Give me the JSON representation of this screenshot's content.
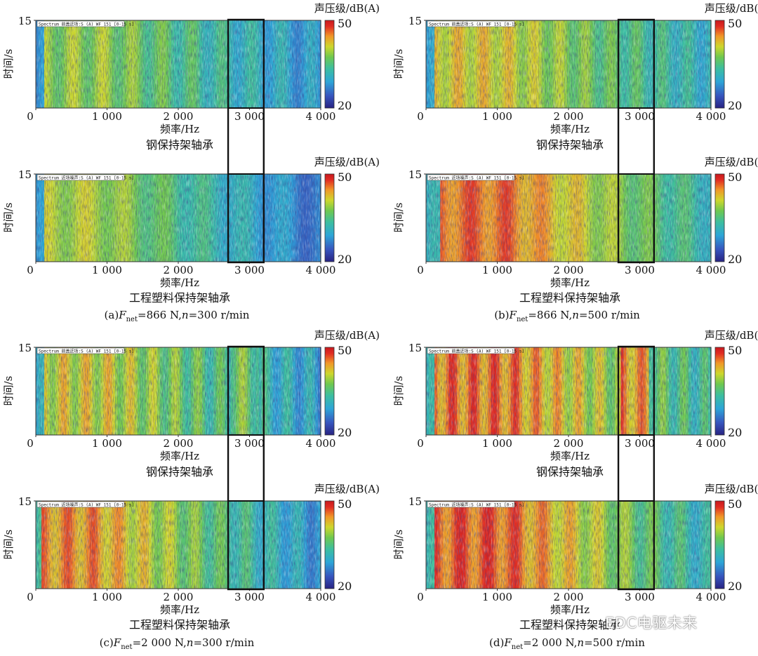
{
  "figure": {
    "watermark": "EDC电驱未来"
  },
  "chart_data": {
    "type": "heatmap",
    "xlabel": "频率/Hz",
    "ylabel": "时间/s",
    "colorbar_title": "声压级/dB(A)",
    "x_ticks": [
      "0",
      "1 000",
      "2 000",
      "3 000",
      "4 000"
    ],
    "x_range": [
      0,
      4000
    ],
    "y_ticks": [
      "15"
    ],
    "y_range": [
      0,
      15
    ],
    "color_range": [
      20,
      50
    ],
    "color_ticks": [
      "50",
      "20"
    ],
    "highlight_band_hz": [
      2700,
      3200
    ],
    "panels": [
      {
        "caption": {
          "pre": "(a)",
          "f": "F",
          "sub": "net",
          "mid": "=866 N,",
          "n": "n",
          "post": "=300 r/min"
        },
        "plots": [
          {
            "bearing": "钢保持架轴承",
            "header": "Spectrum 前盖近场:S (A) WF 151 [0-15 s]"
          },
          {
            "bearing": "工程塑料保持架轴承",
            "header": "Spectrum 近场噪声:S (A) WF 151 [0-15 s]"
          }
        ]
      },
      {
        "caption": {
          "pre": "(b)",
          "f": "F",
          "sub": "net",
          "mid": "=866 N,",
          "n": "n",
          "post": "=500 r/min"
        },
        "plots": [
          {
            "bearing": "钢保持架轴承",
            "header": "Spectrum 前盖近场:S (A) WF 151 [0-15 s]"
          },
          {
            "bearing": "工程塑料保持架轴承",
            "header": "Spectrum 近场噪声:S (A) WF 151 [0-15 s]"
          }
        ]
      },
      {
        "caption": {
          "pre": "(c)",
          "f": "F",
          "sub": "net",
          "mid": "=2 000 N,",
          "n": "n",
          "post": "=300 r/min"
        },
        "plots": [
          {
            "bearing": "钢保持架轴承",
            "header": "Spectrum 前盖近场:S (A) WF 151 [0-15 s]"
          },
          {
            "bearing": "工程塑料保持架轴承",
            "header": "Spectrum 近场噪声:S (A) WF 151 [0-15 s]"
          }
        ]
      },
      {
        "caption": {
          "pre": "(d)",
          "f": "F",
          "sub": "net",
          "mid": "=2 000 N,",
          "n": "n",
          "post": "=500 r/min"
        },
        "plots": [
          {
            "bearing": "钢保持架轴承",
            "header": "Spectrum 前盖近场:S (A) WF 151 [0-15 s]"
          },
          {
            "bearing": "工程塑料保持架轴承",
            "header": "Spectrum 近场噪声:S (A) WF 151 [0-15 s]"
          }
        ]
      }
    ]
  }
}
